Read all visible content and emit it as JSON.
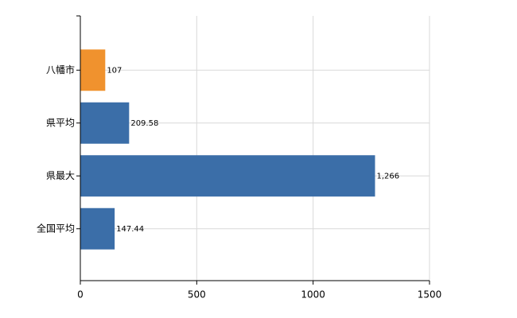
{
  "chart_data": {
    "type": "hbar",
    "categories": [
      "八幡市",
      "県平均",
      "県最大",
      "全国平均"
    ],
    "values": [
      107,
      209.58,
      1266,
      147.44
    ],
    "value_labels": [
      "107",
      "209.58",
      "1,266",
      "147.44"
    ],
    "colors": [
      "#f0922e",
      "#3b6ea8",
      "#3b6ea8",
      "#3b6ea8"
    ],
    "xlim": [
      0,
      1500
    ],
    "xticks": [
      0,
      500,
      1000,
      1500
    ],
    "grid": true
  }
}
